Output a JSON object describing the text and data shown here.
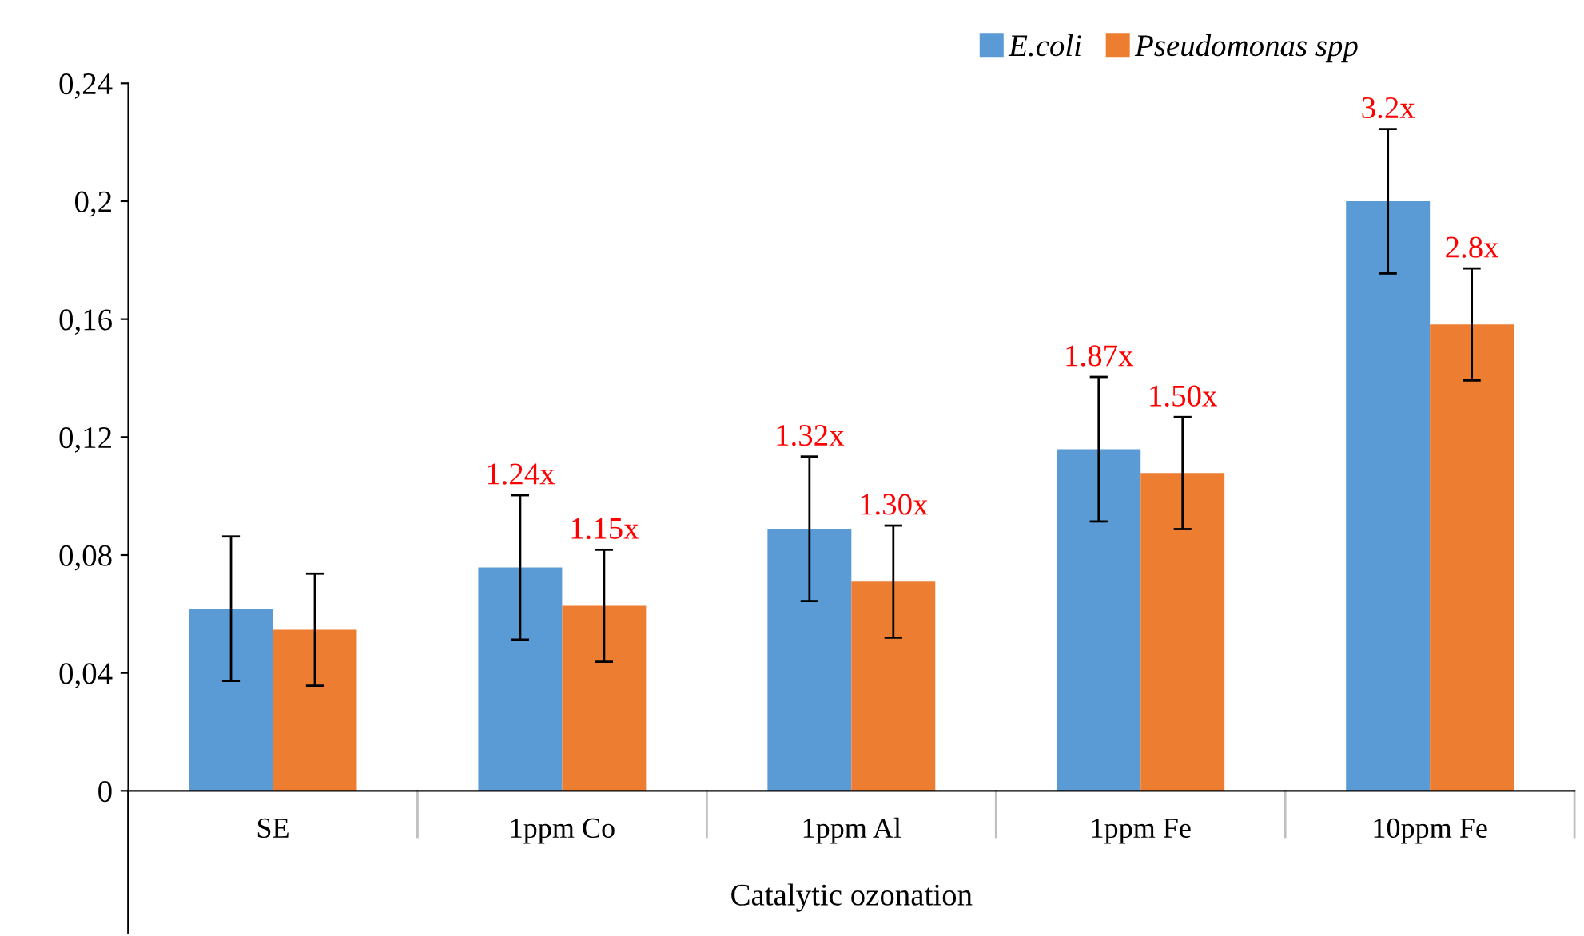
{
  "chart_data": {
    "type": "bar",
    "xlabel": "Catalytic ozonation",
    "categories": [
      "SE",
      "1ppm Co",
      "1ppm Al",
      "1ppm Fe",
      "10ppm Fe"
    ],
    "series": [
      {
        "name": "E.coli",
        "color": "#5b9bd5",
        "values": [
          0.0618,
          0.0758,
          0.0889,
          0.1159,
          0.2
        ],
        "errors": [
          0.0245,
          0.0245,
          0.0245,
          0.0245,
          0.0245
        ]
      },
      {
        "name": "Pseudomonas spp",
        "color": "#ed7d31",
        "values": [
          0.0547,
          0.0628,
          0.071,
          0.1078,
          0.1582
        ],
        "errors": [
          0.019,
          0.019,
          0.019,
          0.019,
          0.019
        ]
      }
    ],
    "annotations": [
      "1.24x",
      "1.15x",
      "1.32x",
      "1.30x",
      "1.87x",
      "1.50x",
      "3.2x",
      "2.8x"
    ],
    "ylim": [
      0,
      0.24
    ],
    "yticks": [
      {
        "value": 0,
        "label": "0"
      },
      {
        "value": 0.04,
        "label": "0,04"
      },
      {
        "value": 0.08,
        "label": "0,08"
      },
      {
        "value": 0.12,
        "label": "0,12"
      },
      {
        "value": 0.16,
        "label": "0,16"
      },
      {
        "value": 0.2,
        "label": "0,2"
      },
      {
        "value": 0.24,
        "label": "0,24"
      }
    ],
    "grid": false,
    "legend": "top right"
  }
}
